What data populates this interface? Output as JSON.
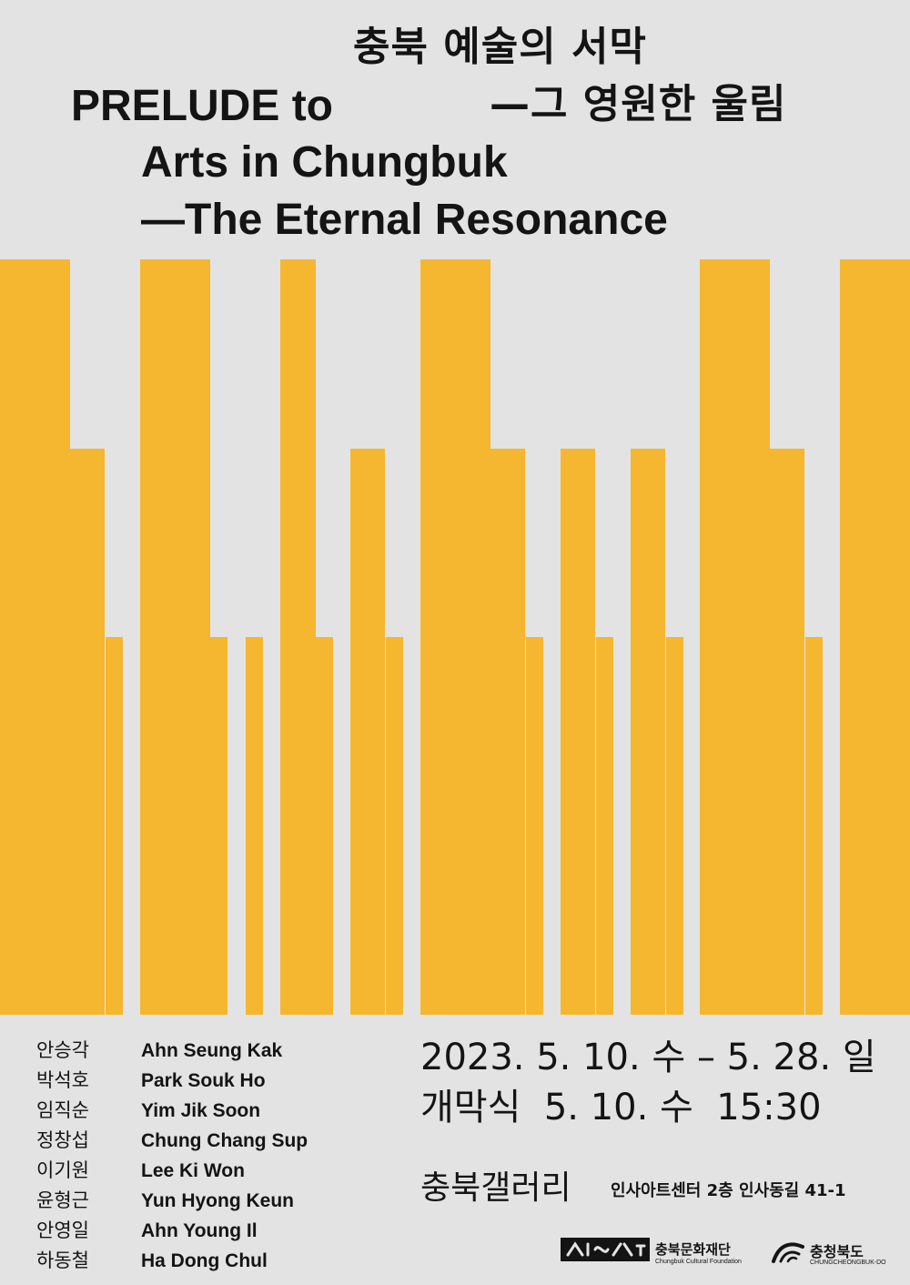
{
  "title": {
    "ko_line1": "충북 예술의 서막",
    "ko_line2": "—그 영원한 울림",
    "en_line1": "PRELUDE to",
    "en_line2": "Arts in Chungbuk",
    "en_line3": "—The Eternal Resonance"
  },
  "artists": [
    {
      "ko": "안승각",
      "en": "Ahn Seung Kak"
    },
    {
      "ko": "박석호",
      "en": "Park Souk Ho"
    },
    {
      "ko": "임직순",
      "en": "Yim Jik Soon"
    },
    {
      "ko": "정창섭",
      "en": "Chung Chang Sup"
    },
    {
      "ko": "이기원",
      "en": "Lee Ki Won"
    },
    {
      "ko": "윤형근",
      "en": "Yun Hyong Keun"
    },
    {
      "ko": "안영일",
      "en": "Ahn Young Il"
    },
    {
      "ko": "하동철",
      "en": "Ha Dong Chul"
    }
  ],
  "schedule": {
    "period": "2023. 5. 10. 수 – 5. 28. 일",
    "opening": "개막식  5. 10. 수  15:30"
  },
  "venue": {
    "name": "충북갤러리",
    "address": "인사아트센터 2층 인사동길 41-1"
  },
  "logos": {
    "foundation_ko": "충북문화재단",
    "foundation_en": "Chungbuk Cultural Foundation",
    "province_ko": "충청북도",
    "province_en": "CHUNGCHEONGBUK-DO"
  },
  "colors": {
    "background": "#e3e3e3",
    "bar_yellow": "#f5b730",
    "text": "#141414"
  }
}
